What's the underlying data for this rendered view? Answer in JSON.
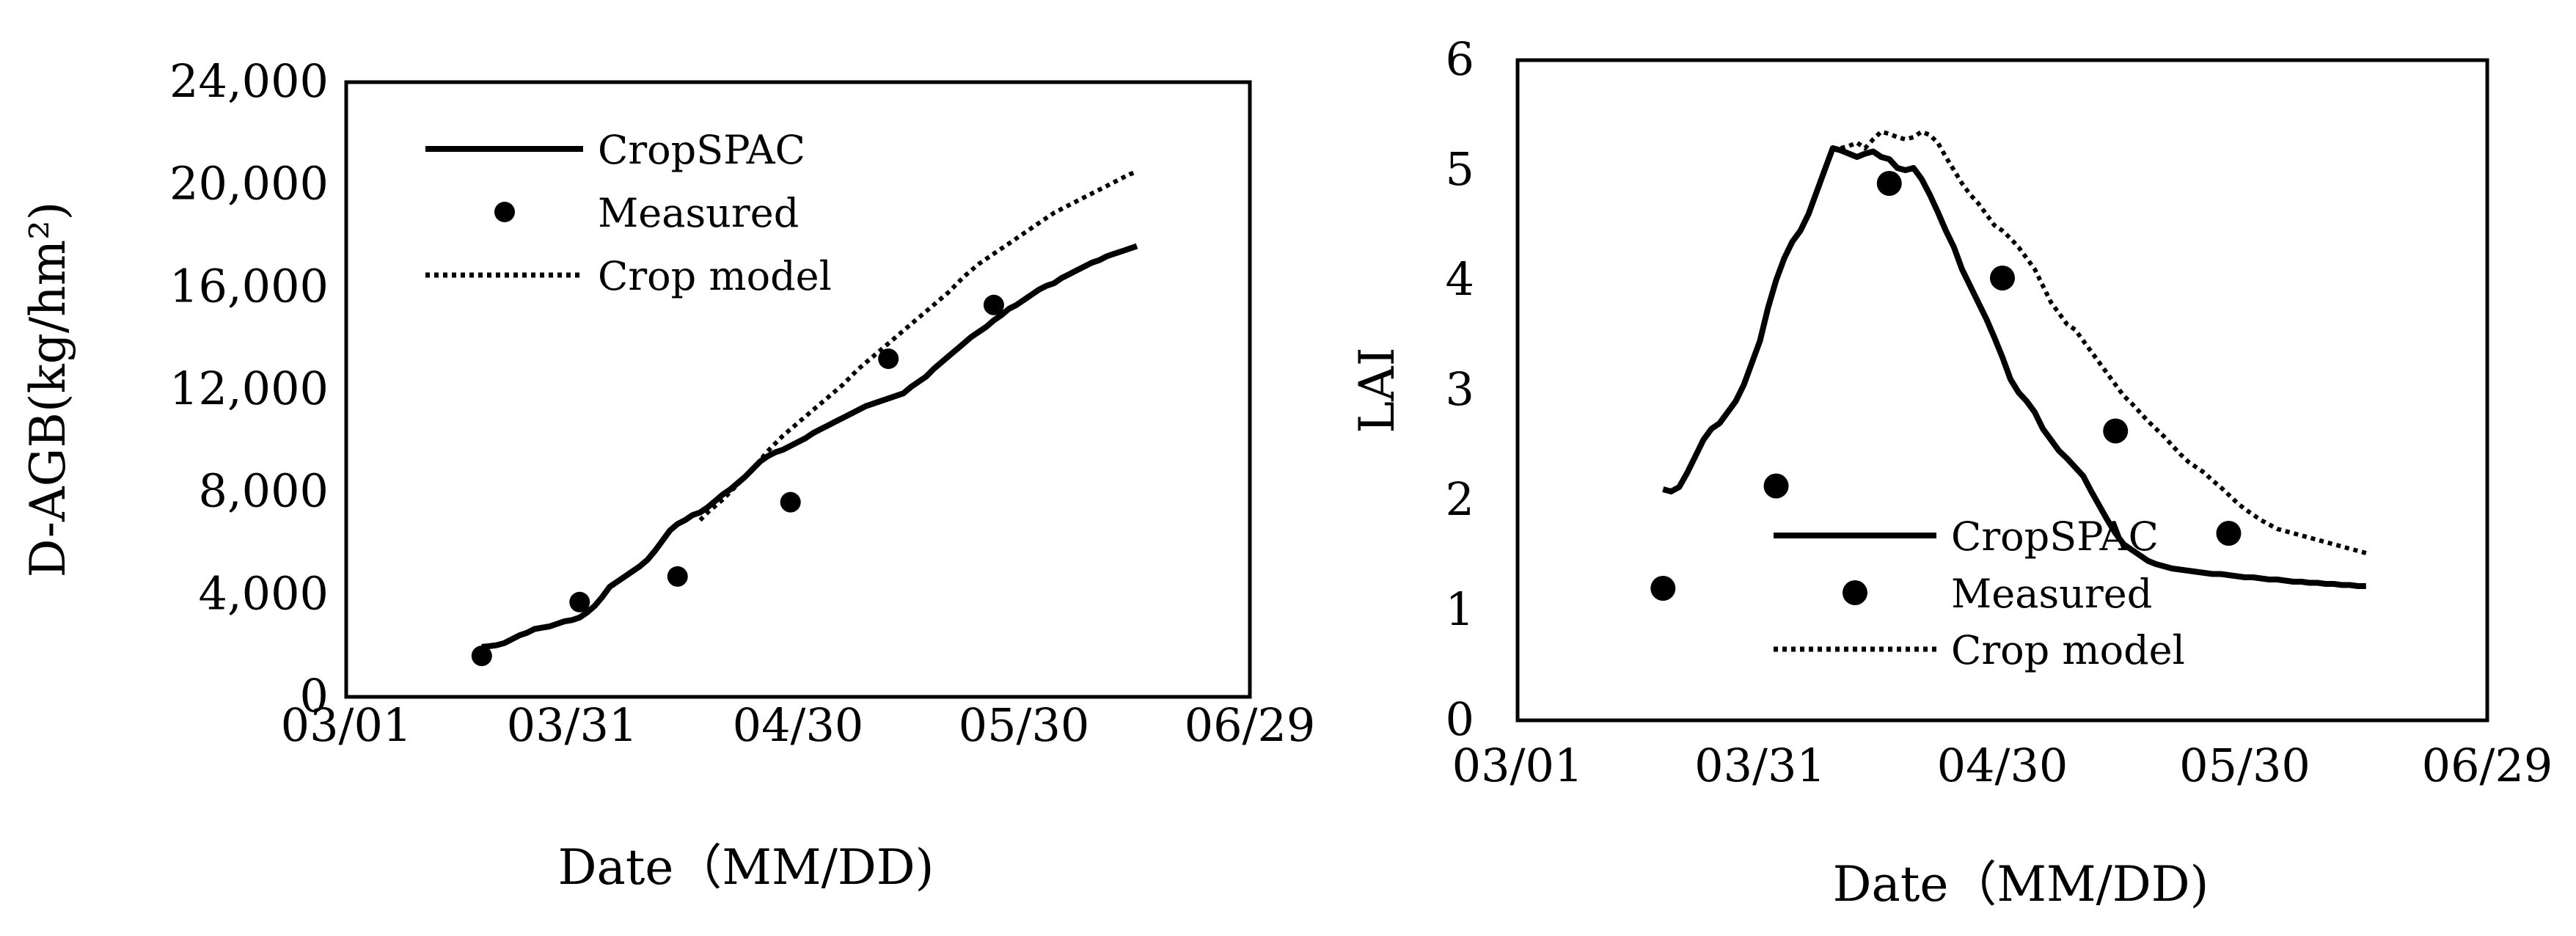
{
  "chart_data": [
    {
      "type": "line",
      "xlabel": "Date（MM/DD)",
      "ylabel": "D-AGB(kg/hm²)",
      "x_tick_labels": [
        "03/01",
        "03/31",
        "04/30",
        "05/30",
        "06/29"
      ],
      "x_ticks_day": [
        0,
        30,
        60,
        90,
        120
      ],
      "y_tick_labels": [
        "0",
        "4,000",
        "8,000",
        "12,000",
        "16,000",
        "20,000",
        "24,000"
      ],
      "y_ticks": [
        0,
        4000,
        8000,
        12000,
        16000,
        20000,
        24000
      ],
      "xlim": [
        0,
        120
      ],
      "ylim": [
        0,
        24000
      ],
      "legend_position": "top-left",
      "series": [
        {
          "name": "CropSPAC",
          "style": "solid",
          "x": [
            18,
            19,
            20,
            21,
            22,
            23,
            24,
            25,
            26,
            27,
            28,
            29,
            30,
            31,
            32,
            33,
            34,
            35,
            36,
            37,
            38,
            39,
            40,
            41,
            42,
            43,
            44,
            45,
            46,
            47,
            48,
            49,
            50,
            51,
            52,
            53,
            54,
            55,
            56,
            57,
            58,
            59,
            60,
            61,
            62,
            63,
            64,
            65,
            66,
            67,
            68,
            69,
            70,
            71,
            72,
            73,
            74,
            75,
            76,
            77,
            78,
            79,
            80,
            81,
            82,
            83,
            84,
            85,
            86,
            87,
            88,
            89,
            90,
            91,
            92,
            93,
            94,
            95,
            96,
            97,
            98,
            99,
            100,
            101,
            102,
            103,
            104,
            105
          ],
          "y": [
            1950,
            1980,
            2020,
            2100,
            2250,
            2400,
            2500,
            2650,
            2700,
            2750,
            2850,
            2950,
            3000,
            3100,
            3300,
            3550,
            3900,
            4300,
            4500,
            4700,
            4900,
            5100,
            5350,
            5700,
            6100,
            6500,
            6750,
            6900,
            7100,
            7200,
            7400,
            7650,
            7900,
            8100,
            8350,
            8600,
            8900,
            9200,
            9400,
            9550,
            9650,
            9800,
            9950,
            10100,
            10300,
            10450,
            10600,
            10750,
            10900,
            11050,
            11200,
            11350,
            11450,
            11550,
            11650,
            11750,
            11850,
            12100,
            12300,
            12500,
            12800,
            13050,
            13300,
            13550,
            13800,
            14050,
            14250,
            14450,
            14700,
            14900,
            15150,
            15300,
            15500,
            15700,
            15900,
            16050,
            16150,
            16350,
            16500,
            16650,
            16800,
            16950,
            17050,
            17200,
            17300,
            17400,
            17500,
            17600
          ]
        },
        {
          "name": "Measured",
          "style": "marker",
          "x": [
            18,
            31,
            44,
            59,
            72,
            86
          ],
          "y": [
            1600,
            3700,
            4700,
            7600,
            13200,
            15300
          ]
        },
        {
          "name": "Crop model",
          "style": "dotted",
          "x": [
            47,
            48,
            50,
            52,
            54,
            56,
            58,
            60,
            62,
            64,
            66,
            68,
            70,
            72,
            74,
            76,
            78,
            80,
            82,
            84,
            86,
            88,
            90,
            92,
            94,
            96,
            98,
            100,
            102,
            104,
            105
          ],
          "y": [
            6900,
            7200,
            7700,
            8300,
            8900,
            9600,
            10200,
            10700,
            11200,
            11700,
            12200,
            12800,
            13300,
            13800,
            14300,
            14800,
            15300,
            15800,
            16400,
            16900,
            17300,
            17700,
            18100,
            18500,
            18900,
            19200,
            19500,
            19800,
            20100,
            20400,
            20500
          ]
        }
      ]
    },
    {
      "type": "line",
      "xlabel": "Date（MM/DD)",
      "ylabel": "LAI",
      "x_tick_labels": [
        "03/01",
        "03/31",
        "04/30",
        "05/30",
        "06/29"
      ],
      "x_ticks_day": [
        0,
        30,
        60,
        90,
        120
      ],
      "y_tick_labels": [
        "0",
        "1",
        "2",
        "3",
        "4",
        "5",
        "6"
      ],
      "y_ticks": [
        0,
        1,
        2,
        3,
        4,
        5,
        6
      ],
      "xlim": [
        0,
        120
      ],
      "ylim": [
        0,
        6
      ],
      "legend_position": "bottom-center",
      "series": [
        {
          "name": "CropSPAC",
          "style": "solid",
          "x": [
            18,
            19,
            20,
            21,
            22,
            23,
            24,
            25,
            26,
            27,
            28,
            29,
            30,
            31,
            32,
            33,
            34,
            35,
            36,
            37,
            38,
            39,
            40,
            41,
            42,
            43,
            44,
            45,
            46,
            47,
            48,
            49,
            50,
            51,
            52,
            53,
            54,
            55,
            56,
            57,
            58,
            59,
            60,
            61,
            62,
            63,
            64,
            65,
            66,
            67,
            68,
            69,
            70,
            71,
            72,
            73,
            74,
            75,
            76,
            77,
            78,
            79,
            80,
            81,
            82,
            83,
            84,
            85,
            86,
            87,
            88,
            89,
            90,
            91,
            92,
            93,
            94,
            95,
            96,
            97,
            98,
            99,
            100,
            101,
            102,
            103,
            104,
            105
          ],
          "y": [
            2.1,
            2.08,
            2.12,
            2.25,
            2.4,
            2.55,
            2.65,
            2.7,
            2.8,
            2.9,
            3.05,
            3.25,
            3.45,
            3.75,
            4.0,
            4.2,
            4.35,
            4.45,
            4.6,
            4.8,
            5.0,
            5.2,
            5.18,
            5.15,
            5.12,
            5.15,
            5.17,
            5.12,
            5.1,
            5.02,
            5.0,
            5.02,
            4.92,
            4.78,
            4.62,
            4.45,
            4.3,
            4.1,
            3.95,
            3.8,
            3.65,
            3.48,
            3.3,
            3.1,
            2.98,
            2.9,
            2.8,
            2.65,
            2.55,
            2.45,
            2.38,
            2.3,
            2.22,
            2.08,
            1.95,
            1.82,
            1.7,
            1.6,
            1.55,
            1.5,
            1.45,
            1.42,
            1.4,
            1.38,
            1.37,
            1.36,
            1.35,
            1.34,
            1.33,
            1.33,
            1.32,
            1.31,
            1.3,
            1.3,
            1.29,
            1.28,
            1.28,
            1.27,
            1.26,
            1.26,
            1.25,
            1.25,
            1.24,
            1.24,
            1.23,
            1.23,
            1.22,
            1.22
          ]
        },
        {
          "name": "Measured",
          "style": "marker",
          "x": [
            18,
            32,
            46,
            60,
            74,
            88
          ],
          "y": [
            1.2,
            2.13,
            4.88,
            4.02,
            2.63,
            1.7
          ]
        },
        {
          "name": "Crop model",
          "style": "dotted",
          "x": [
            40,
            41,
            42,
            43,
            44,
            45,
            46,
            47,
            48,
            49,
            50,
            51,
            52,
            53,
            54,
            55,
            56,
            57,
            58,
            59,
            60,
            61,
            62,
            63,
            64,
            65,
            66,
            67,
            68,
            69,
            70,
            71,
            72,
            73,
            74,
            75,
            76,
            77,
            78,
            79,
            80,
            81,
            82,
            83,
            84,
            85,
            86,
            87,
            88,
            89,
            90,
            91,
            92,
            93,
            94,
            95,
            96,
            97,
            98,
            99,
            100,
            101,
            102,
            103,
            104,
            105
          ],
          "y": [
            5.2,
            5.22,
            5.25,
            5.2,
            5.28,
            5.35,
            5.33,
            5.3,
            5.28,
            5.3,
            5.35,
            5.32,
            5.25,
            5.12,
            5.0,
            4.88,
            4.78,
            4.7,
            4.6,
            4.5,
            4.45,
            4.38,
            4.3,
            4.2,
            4.1,
            3.95,
            3.8,
            3.7,
            3.6,
            3.55,
            3.45,
            3.35,
            3.25,
            3.15,
            3.05,
            2.95,
            2.88,
            2.8,
            2.72,
            2.65,
            2.58,
            2.5,
            2.42,
            2.35,
            2.3,
            2.25,
            2.18,
            2.12,
            2.05,
            1.98,
            1.92,
            1.87,
            1.82,
            1.78,
            1.74,
            1.72,
            1.7,
            1.68,
            1.66,
            1.64,
            1.62,
            1.6,
            1.58,
            1.56,
            1.54,
            1.52
          ]
        }
      ]
    }
  ]
}
